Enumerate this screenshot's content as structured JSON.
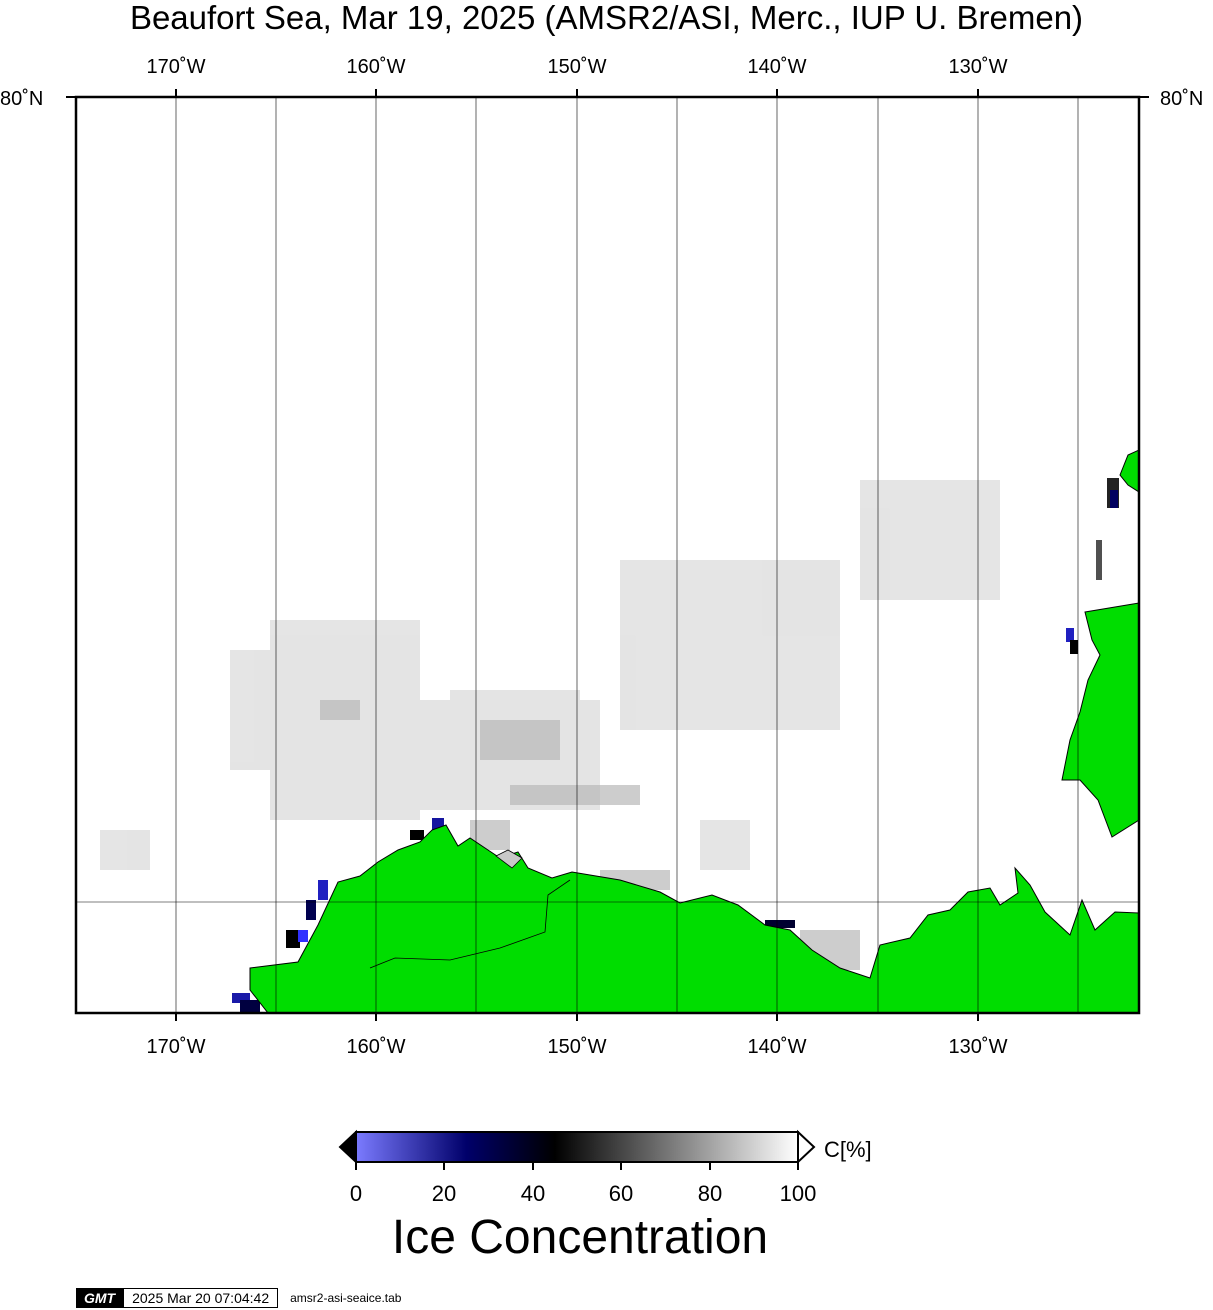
{
  "title": "Beaufort Sea, Mar 19, 2025 (AMSR2/ASI, Merc., IUP U. Bremen)",
  "lon_labels": [
    "170˚W",
    "160˚W",
    "150˚W",
    "140˚W",
    "130˚W"
  ],
  "lat_label": "80˚N",
  "colorbar": {
    "ticks": [
      "0",
      "20",
      "40",
      "60",
      "80",
      "100"
    ],
    "unit": "C[%]",
    "title": "Ice Concentration"
  },
  "footer": {
    "logo": "GMT",
    "timestamp": "2025 Mar 20 07:04:42",
    "script": "amsr2-asi-seaice.tab"
  },
  "colors": {
    "land": "#00dd00",
    "ocean_ice_full": "#ffffff",
    "cbar_low": "#7b7bff",
    "cbar_mid1": "#00006a",
    "cbar_mid2": "#000000",
    "cbar_high": "#ffffff"
  }
}
